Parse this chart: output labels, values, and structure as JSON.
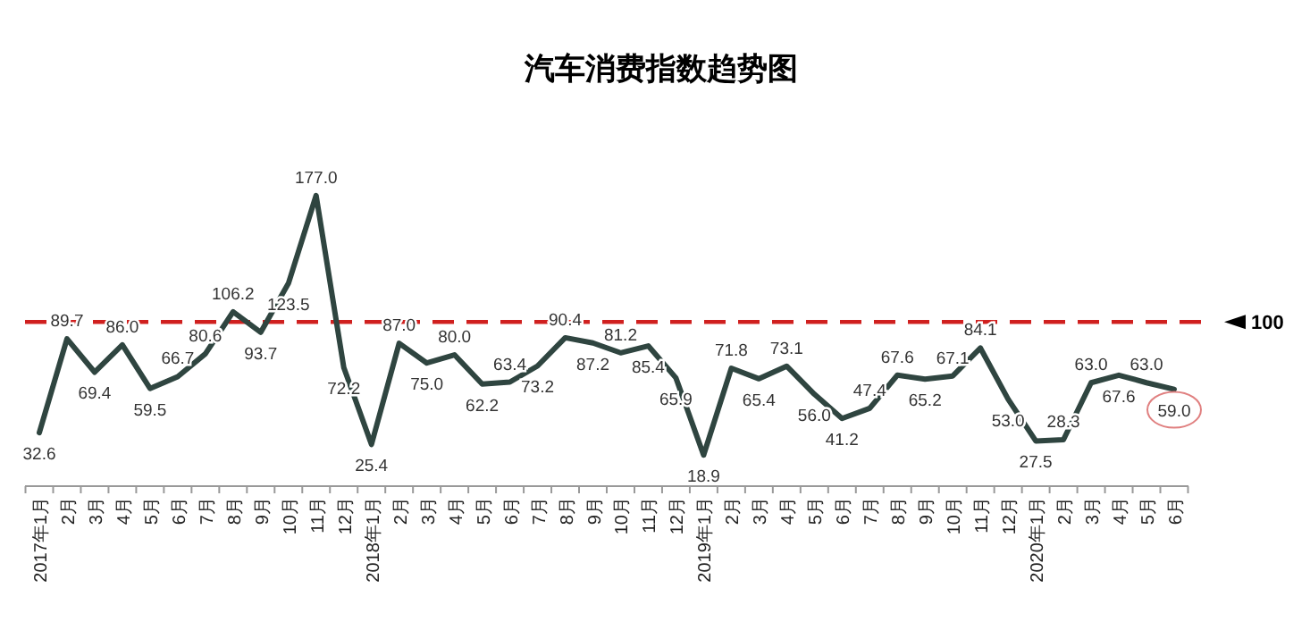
{
  "chart_data": {
    "type": "line",
    "title": "汽车消费指数趋势图",
    "categories": [
      "2017年1月",
      "2月",
      "3月",
      "4月",
      "5月",
      "6月",
      "7月",
      "8月",
      "9月",
      "10月",
      "11月",
      "12月",
      "2018年1月",
      "2月",
      "3月",
      "4月",
      "5月",
      "6月",
      "7月",
      "8月",
      "9月",
      "10月",
      "11月",
      "12月",
      "2019年1月",
      "2月",
      "3月",
      "4月",
      "5月",
      "6月",
      "7月",
      "8月",
      "9月",
      "10月",
      "11月",
      "12月",
      "2020年1月",
      "2月",
      "3月",
      "4月",
      "5月",
      "6月"
    ],
    "series": [
      {
        "color": "#2f4540",
        "values": [
          32.6,
          89.7,
          69.4,
          86.0,
          59.5,
          66.7,
          80.6,
          106.2,
          93.7,
          123.5,
          177.0,
          72.2,
          25.4,
          87.0,
          75.0,
          80.0,
          62.2,
          63.4,
          73.2,
          90.4,
          87.2,
          81.2,
          85.4,
          65.9,
          18.9,
          71.8,
          65.4,
          73.1,
          56.0,
          41.2,
          47.4,
          67.6,
          65.2,
          67.1,
          84.1,
          53.0,
          27.5,
          28.3,
          63.0,
          67.6,
          63.0,
          59.0
        ],
        "value_labels": [
          "32.6",
          "89.7",
          "69.4",
          "86.0",
          "59.5",
          "66.7",
          "80.6",
          "106.2",
          "93.7",
          "123.5",
          "177.0",
          "72.2",
          "25.4",
          "87.0",
          "75.0",
          "80.0",
          "62.2",
          "63.4",
          "73.2",
          "90.4",
          "87.2",
          "81.2",
          "85.4",
          "65.9",
          "18.9",
          "71.8",
          "65.4",
          "73.1",
          "56.0",
          "41.2",
          "47.4",
          "67.6",
          "65.2",
          "67.1",
          "84.1",
          "53.0",
          "27.5",
          "28.3",
          "63.0",
          "67.6",
          "63.0",
          "59.0"
        ]
      }
    ],
    "tick_labels": "x",
    "marker": "none",
    "line_style": "solid",
    "ref_lines": [
      {
        "axis": "y",
        "value": 100,
        "label": "100",
        "color": "#d0201f",
        "line_style": "dashed"
      }
    ]
  }
}
